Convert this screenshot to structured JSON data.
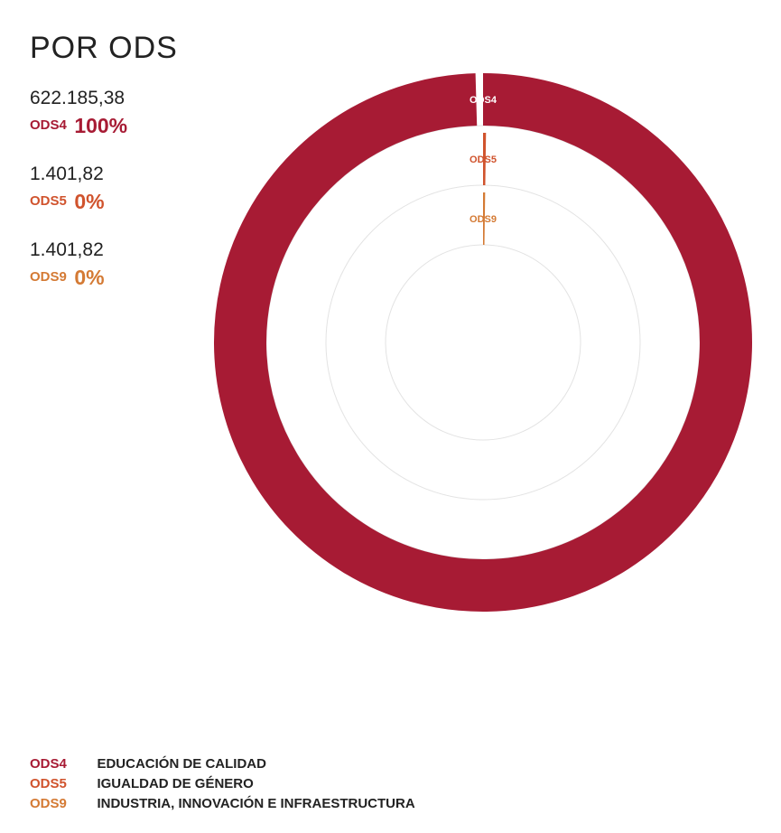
{
  "header": {
    "title": "POR ODS"
  },
  "colors": {
    "ODS4": "#a71b34",
    "ODS5": "#d0532d",
    "ODS9": "#d47a34",
    "track": "#e3e3e3"
  },
  "stats": [
    {
      "amount": "622.185,38",
      "code": "ODS4",
      "percent": "100%"
    },
    {
      "amount": "1.401,82",
      "code": "ODS5",
      "percent": "0%"
    },
    {
      "amount": "1.401,82",
      "code": "ODS9",
      "percent": "0%"
    }
  ],
  "chart_data": {
    "type": "radial-bar",
    "categories": [
      "ODS4",
      "ODS5",
      "ODS9"
    ],
    "values": [
      622185.38,
      1401.82,
      1401.82
    ],
    "percent_labels": [
      "100%",
      "0%",
      "0%"
    ],
    "ring_labels": [
      "ODS4",
      "ODS5",
      "ODS9"
    ]
  },
  "legend": [
    {
      "code": "ODS4",
      "label": "EDUCACIÓN DE CALIDAD"
    },
    {
      "code": "ODS5",
      "label": "IGUALDAD DE GÉNERO"
    },
    {
      "code": "ODS9",
      "label": "INDUSTRIA, INNOVACIÓN E INFRAESTRUCTURA"
    }
  ]
}
